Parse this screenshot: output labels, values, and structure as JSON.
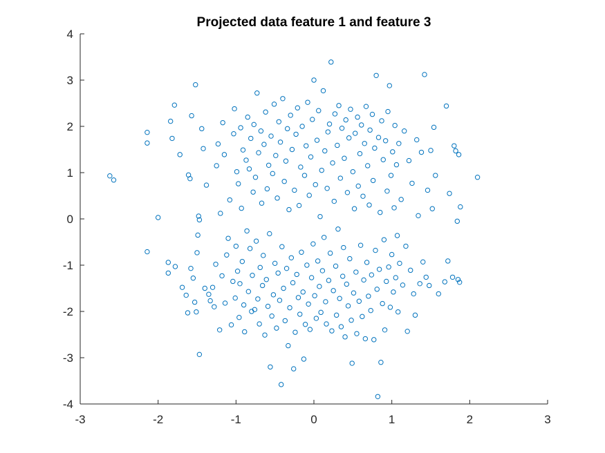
{
  "chart_data": {
    "type": "scatter",
    "title": "Projected data feature 1 and feature 3",
    "xlabel": "",
    "ylabel": "",
    "xlim": [
      -3,
      3
    ],
    "ylim": [
      -4,
      4
    ],
    "xticks": [
      "-3",
      "-2",
      "-1",
      "0",
      "1",
      "2",
      "3"
    ],
    "yticks": [
      "-4",
      "-3",
      "-2",
      "-1",
      "0",
      "1",
      "2",
      "3",
      "4"
    ],
    "grid": false,
    "marker": "open-circle",
    "color": "#0072BD",
    "points": [
      [
        -2.62,
        0.93
      ],
      [
        -2.57,
        0.84
      ],
      [
        -2.14,
        1.87
      ],
      [
        -2.14,
        1.64
      ],
      [
        -2.14,
        -0.71
      ],
      [
        -2.0,
        0.03
      ],
      [
        -1.87,
        -0.94
      ],
      [
        -1.87,
        -1.17
      ],
      [
        -1.84,
        2.11
      ],
      [
        -1.82,
        1.74
      ],
      [
        -1.79,
        2.46
      ],
      [
        -1.78,
        -1.03
      ],
      [
        -1.72,
        1.39
      ],
      [
        -1.69,
        -1.48
      ],
      [
        -1.64,
        -1.65
      ],
      [
        -1.62,
        -2.03
      ],
      [
        -1.61,
        0.95
      ],
      [
        -1.59,
        0.87
      ],
      [
        -1.58,
        -1.07
      ],
      [
        -1.57,
        2.23
      ],
      [
        -1.55,
        -1.28
      ],
      [
        -1.53,
        -1.8
      ],
      [
        -1.52,
        2.9
      ],
      [
        -1.51,
        -2.01
      ],
      [
        -1.5,
        -0.73
      ],
      [
        -1.49,
        -0.35
      ],
      [
        -1.48,
        0.06
      ],
      [
        -1.47,
        -0.02
      ],
      [
        -1.47,
        -2.93
      ],
      [
        -1.44,
        1.95
      ],
      [
        -1.42,
        1.52
      ],
      [
        -1.4,
        -1.5
      ],
      [
        -1.38,
        0.73
      ],
      [
        -1.35,
        -1.63
      ],
      [
        -1.33,
        -1.77
      ],
      [
        -1.3,
        -1.48
      ],
      [
        -1.28,
        -1.9
      ],
      [
        -1.26,
        -0.98
      ],
      [
        -1.25,
        1.15
      ],
      [
        -1.23,
        1.62
      ],
      [
        -1.21,
        -2.4
      ],
      [
        -1.2,
        0.12
      ],
      [
        -1.18,
        -1.23
      ],
      [
        -1.17,
        2.08
      ],
      [
        -1.15,
        1.39
      ],
      [
        -1.14,
        -1.82
      ],
      [
        -1.12,
        -0.78
      ],
      [
        -1.1,
        -0.42
      ],
      [
        -1.08,
        0.41
      ],
      [
        -1.06,
        -2.29
      ],
      [
        -1.04,
        -1.35
      ],
      [
        -1.03,
        1.84
      ],
      [
        -1.02,
        2.38
      ],
      [
        -1.01,
        -1.71
      ],
      [
        -1.0,
        -0.59
      ],
      [
        -0.99,
        1.02
      ],
      [
        -0.98,
        -1.13
      ],
      [
        -0.97,
        0.76
      ],
      [
        -0.96,
        -2.13
      ],
      [
        -0.95,
        -1.4
      ],
      [
        -0.94,
        1.97
      ],
      [
        -0.93,
        0.23
      ],
      [
        -0.92,
        -0.92
      ],
      [
        -0.91,
        1.49
      ],
      [
        -0.9,
        -1.86
      ],
      [
        -0.89,
        -2.44
      ],
      [
        -0.87,
        1.27
      ],
      [
        -0.86,
        -0.26
      ],
      [
        -0.85,
        2.2
      ],
      [
        -0.84,
        -1.57
      ],
      [
        -0.83,
        1.08
      ],
      [
        -0.82,
        -0.64
      ],
      [
        -0.81,
        1.74
      ],
      [
        -0.8,
        -2.0
      ],
      [
        -0.79,
        -1.22
      ],
      [
        -0.78,
        0.58
      ],
      [
        -0.77,
        2.04
      ],
      [
        -0.76,
        -1.96
      ],
      [
        -0.75,
        0.9
      ],
      [
        -0.74,
        -0.48
      ],
      [
        -0.73,
        2.72
      ],
      [
        -0.72,
        -1.73
      ],
      [
        -0.71,
        1.43
      ],
      [
        -0.7,
        -2.27
      ],
      [
        -0.69,
        -1.05
      ],
      [
        -0.68,
        1.9
      ],
      [
        -0.67,
        0.34
      ],
      [
        -0.66,
        -1.44
      ],
      [
        -0.65,
        -0.79
      ],
      [
        -0.64,
        1.61
      ],
      [
        -0.63,
        -2.51
      ],
      [
        -0.62,
        2.31
      ],
      [
        -0.61,
        -1.31
      ],
      [
        -0.6,
        0.65
      ],
      [
        -0.59,
        -1.89
      ],
      [
        -0.58,
        1.16
      ],
      [
        -0.57,
        -0.32
      ],
      [
        -0.56,
        -3.2
      ],
      [
        -0.55,
        1.79
      ],
      [
        -0.54,
        -2.1
      ],
      [
        -0.53,
        0.98
      ],
      [
        -0.52,
        -1.64
      ],
      [
        -0.51,
        2.48
      ],
      [
        -0.5,
        -0.96
      ],
      [
        -0.49,
        1.37
      ],
      [
        -0.48,
        -2.36
      ],
      [
        -0.47,
        0.45
      ],
      [
        -0.46,
        -1.17
      ],
      [
        -0.45,
        2.1
      ],
      [
        -0.44,
        -1.76
      ],
      [
        -0.43,
        1.66
      ],
      [
        -0.42,
        -3.58
      ],
      [
        -0.41,
        -0.6
      ],
      [
        -0.4,
        2.6
      ],
      [
        -0.39,
        -1.5
      ],
      [
        -0.38,
        0.81
      ],
      [
        -0.37,
        -2.2
      ],
      [
        -0.36,
        1.25
      ],
      [
        -0.35,
        -1.07
      ],
      [
        -0.34,
        1.95
      ],
      [
        -0.33,
        -2.74
      ],
      [
        -0.32,
        0.2
      ],
      [
        -0.31,
        -1.92
      ],
      [
        -0.3,
        2.24
      ],
      [
        -0.29,
        -0.84
      ],
      [
        -0.28,
        1.5
      ],
      [
        -0.27,
        -1.38
      ],
      [
        -0.26,
        -3.24
      ],
      [
        -0.25,
        0.62
      ],
      [
        -0.24,
        -2.45
      ],
      [
        -0.23,
        1.83
      ],
      [
        -0.22,
        -1.2
      ],
      [
        -0.21,
        2.4
      ],
      [
        -0.2,
        -1.7
      ],
      [
        -0.19,
        0.29
      ],
      [
        -0.18,
        -2.06
      ],
      [
        -0.17,
        1.12
      ],
      [
        -0.16,
        -0.72
      ],
      [
        -0.15,
        2.0
      ],
      [
        -0.14,
        -1.58
      ],
      [
        -0.13,
        -3.03
      ],
      [
        -0.12,
        0.94
      ],
      [
        -0.11,
        -2.28
      ],
      [
        -0.1,
        1.58
      ],
      [
        -0.09,
        -1.0
      ],
      [
        -0.08,
        2.52
      ],
      [
        -0.07,
        -1.84
      ],
      [
        -0.06,
        0.51
      ],
      [
        -0.05,
        -2.39
      ],
      [
        -0.04,
        1.34
      ],
      [
        -0.03,
        -1.27
      ],
      [
        -0.02,
        2.15
      ],
      [
        -0.01,
        -0.54
      ],
      [
        0.0,
        3.0
      ],
      [
        0.01,
        -1.66
      ],
      [
        0.02,
        0.74
      ],
      [
        0.03,
        -2.15
      ],
      [
        0.04,
        1.7
      ],
      [
        0.05,
        -0.91
      ],
      [
        0.06,
        2.34
      ],
      [
        0.07,
        -1.46
      ],
      [
        0.08,
        0.05
      ],
      [
        0.09,
        -2.02
      ],
      [
        0.1,
        1.05
      ],
      [
        0.11,
        -1.12
      ],
      [
        0.12,
        2.77
      ],
      [
        0.13,
        -0.4
      ],
      [
        0.14,
        1.47
      ],
      [
        0.15,
        -1.79
      ],
      [
        0.16,
        -2.27
      ],
      [
        0.17,
        0.66
      ],
      [
        0.18,
        1.88
      ],
      [
        0.19,
        -1.33
      ],
      [
        0.2,
        2.05
      ],
      [
        0.21,
        -0.74
      ],
      [
        0.22,
        3.39
      ],
      [
        0.23,
        -2.42
      ],
      [
        0.24,
        1.21
      ],
      [
        0.25,
        -1.55
      ],
      [
        0.26,
        0.38
      ],
      [
        0.27,
        2.27
      ],
      [
        0.28,
        -1.02
      ],
      [
        0.29,
        -2.08
      ],
      [
        0.3,
        1.59
      ],
      [
        0.31,
        -0.22
      ],
      [
        0.32,
        2.45
      ],
      [
        0.33,
        -1.72
      ],
      [
        0.34,
        0.88
      ],
      [
        0.35,
        -2.33
      ],
      [
        0.36,
        1.96
      ],
      [
        0.37,
        -1.24
      ],
      [
        0.38,
        -0.62
      ],
      [
        0.39,
        1.31
      ],
      [
        0.4,
        -2.55
      ],
      [
        0.41,
        2.14
      ],
      [
        0.42,
        -1.41
      ],
      [
        0.43,
        0.57
      ],
      [
        0.44,
        -1.88
      ],
      [
        0.45,
        1.75
      ],
      [
        0.46,
        -0.86
      ],
      [
        0.47,
        2.37
      ],
      [
        0.48,
        -2.19
      ],
      [
        0.49,
        -3.12
      ],
      [
        0.5,
        1.02
      ],
      [
        0.51,
        -1.6
      ],
      [
        0.52,
        0.22
      ],
      [
        0.53,
        1.85
      ],
      [
        0.54,
        -1.15
      ],
      [
        0.55,
        -2.48
      ],
      [
        0.56,
        2.2
      ],
      [
        0.57,
        0.71
      ],
      [
        0.58,
        -1.78
      ],
      [
        0.59,
        1.41
      ],
      [
        0.6,
        -0.57
      ],
      [
        0.61,
        2.03
      ],
      [
        0.62,
        -2.11
      ],
      [
        0.63,
        0.49
      ],
      [
        0.64,
        -1.32
      ],
      [
        0.65,
        1.63
      ],
      [
        0.66,
        -2.59
      ],
      [
        0.67,
        2.43
      ],
      [
        0.68,
        -0.94
      ],
      [
        0.69,
        1.15
      ],
      [
        0.7,
        -1.67
      ],
      [
        0.71,
        0.3
      ],
      [
        0.72,
        1.92
      ],
      [
        0.73,
        -1.98
      ],
      [
        0.74,
        -1.21
      ],
      [
        0.75,
        2.26
      ],
      [
        0.76,
        0.83
      ],
      [
        0.77,
        -2.61
      ],
      [
        0.78,
        1.53
      ],
      [
        0.79,
        -0.68
      ],
      [
        0.8,
        3.1
      ],
      [
        0.81,
        -1.52
      ],
      [
        0.82,
        -3.84
      ],
      [
        0.83,
        1.76
      ],
      [
        0.84,
        -1.09
      ],
      [
        0.85,
        0.14
      ],
      [
        0.86,
        -3.1
      ],
      [
        0.87,
        2.12
      ],
      [
        0.88,
        -1.83
      ],
      [
        0.89,
        1.28
      ],
      [
        0.9,
        -0.45
      ],
      [
        0.91,
        -2.4
      ],
      [
        0.92,
        1.69
      ],
      [
        0.93,
        -1.35
      ],
      [
        0.94,
        0.6
      ],
      [
        0.95,
        2.32
      ],
      [
        0.96,
        -1.04
      ],
      [
        0.97,
        2.88
      ],
      [
        0.98,
        -1.91
      ],
      [
        0.99,
        0.94
      ],
      [
        1.0,
        -0.77
      ],
      [
        1.01,
        1.45
      ],
      [
        1.02,
        -1.58
      ],
      [
        1.03,
        0.24
      ],
      [
        1.04,
        2.02
      ],
      [
        1.05,
        -1.27
      ],
      [
        1.06,
        1.17
      ],
      [
        1.07,
        -0.36
      ],
      [
        1.08,
        -2.01
      ],
      [
        1.09,
        1.63
      ],
      [
        1.1,
        -0.96
      ],
      [
        1.12,
        0.42
      ],
      [
        1.14,
        -1.43
      ],
      [
        1.16,
        1.9
      ],
      [
        1.18,
        -0.59
      ],
      [
        1.2,
        -2.43
      ],
      [
        1.22,
        1.26
      ],
      [
        1.24,
        -1.11
      ],
      [
        1.26,
        0.77
      ],
      [
        1.28,
        -1.62
      ],
      [
        1.3,
        -2.08
      ],
      [
        1.32,
        1.71
      ],
      [
        1.34,
        0.07
      ],
      [
        1.36,
        -1.4
      ],
      [
        1.38,
        1.44
      ],
      [
        1.4,
        -0.93
      ],
      [
        1.42,
        3.12
      ],
      [
        1.44,
        -1.26
      ],
      [
        1.46,
        0.62
      ],
      [
        1.48,
        -1.44
      ],
      [
        1.5,
        1.48
      ],
      [
        1.52,
        0.22
      ],
      [
        1.54,
        1.98
      ],
      [
        1.56,
        0.94
      ],
      [
        1.6,
        -1.62
      ],
      [
        1.68,
        -1.36
      ],
      [
        1.7,
        2.44
      ],
      [
        1.72,
        -0.91
      ],
      [
        1.74,
        0.55
      ],
      [
        1.78,
        -1.26
      ],
      [
        1.8,
        1.58
      ],
      [
        1.82,
        1.47
      ],
      [
        1.84,
        -0.05
      ],
      [
        1.85,
        -1.31
      ],
      [
        1.86,
        1.39
      ],
      [
        1.87,
        -1.37
      ],
      [
        1.88,
        0.26
      ],
      [
        2.1,
        0.9
      ]
    ]
  }
}
